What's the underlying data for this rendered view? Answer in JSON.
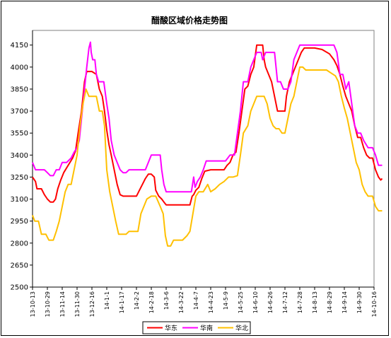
{
  "chart_data": {
    "type": "line",
    "title": "醋酸区域价格走势图",
    "xlabel": "",
    "ylabel": "",
    "ylim": [
      2500,
      4250
    ],
    "yticks": [
      2500,
      2650,
      2800,
      2950,
      3100,
      3250,
      3400,
      3550,
      3700,
      3850,
      4000,
      4150
    ],
    "grid": false,
    "legend_position": "bottom",
    "xtick_labels": [
      "13-10-13",
      "13-10-29",
      "13-11-14",
      "13-11-30",
      "13-12-16",
      "14-1-1",
      "14-1-17",
      "14-2-2",
      "14-2-18",
      "14-3-6",
      "14-3-22",
      "14-4-7",
      "14-4-23",
      "14-5-9",
      "14-5-25",
      "14-6-10",
      "14-6-26",
      "14-7-12",
      "14-7-28",
      "14-8-13",
      "14-8-29",
      "14-9-14",
      "14-9-30",
      "14-10-16"
    ],
    "series": [
      {
        "name": "华东",
        "color": "#ff0000",
        "points": [
          [
            0,
            3250
          ],
          [
            0.2,
            3220
          ],
          [
            0.3,
            3170
          ],
          [
            0.6,
            3170
          ],
          [
            0.8,
            3130
          ],
          [
            1.0,
            3100
          ],
          [
            1.2,
            3080
          ],
          [
            1.4,
            3080
          ],
          [
            1.55,
            3100
          ],
          [
            1.7,
            3170
          ],
          [
            1.9,
            3230
          ],
          [
            2.1,
            3280
          ],
          [
            2.4,
            3330
          ],
          [
            2.7,
            3380
          ],
          [
            2.9,
            3430
          ],
          [
            3.1,
            3570
          ],
          [
            3.3,
            3700
          ],
          [
            3.5,
            3900
          ],
          [
            3.65,
            3970
          ],
          [
            4.0,
            3970
          ],
          [
            4.3,
            3950
          ],
          [
            4.5,
            3850
          ],
          [
            4.7,
            3800
          ],
          [
            4.85,
            3700
          ],
          [
            5.0,
            3570
          ],
          [
            5.15,
            3470
          ],
          [
            5.3,
            3400
          ],
          [
            5.5,
            3300
          ],
          [
            5.7,
            3200
          ],
          [
            5.9,
            3130
          ],
          [
            6.1,
            3120
          ],
          [
            6.4,
            3120
          ],
          [
            7.0,
            3120
          ],
          [
            7.2,
            3160
          ],
          [
            7.4,
            3200
          ],
          [
            7.6,
            3240
          ],
          [
            7.8,
            3270
          ],
          [
            8.0,
            3270
          ],
          [
            8.2,
            3250
          ],
          [
            8.3,
            3160
          ],
          [
            8.5,
            3120
          ],
          [
            8.7,
            3100
          ],
          [
            8.85,
            3080
          ],
          [
            9.0,
            3060
          ],
          [
            9.3,
            3060
          ],
          [
            9.8,
            3060
          ],
          [
            10.3,
            3060
          ],
          [
            10.6,
            3060
          ],
          [
            10.75,
            3120
          ],
          [
            10.85,
            3130
          ],
          [
            11.0,
            3160
          ],
          [
            11.2,
            3180
          ],
          [
            11.4,
            3240
          ],
          [
            11.6,
            3290
          ],
          [
            12.0,
            3300
          ],
          [
            12.5,
            3300
          ],
          [
            12.9,
            3300
          ],
          [
            13.1,
            3330
          ],
          [
            13.3,
            3350
          ],
          [
            13.5,
            3400
          ],
          [
            13.7,
            3420
          ],
          [
            13.9,
            3550
          ],
          [
            14.1,
            3700
          ],
          [
            14.3,
            3850
          ],
          [
            14.5,
            3870
          ],
          [
            14.7,
            3950
          ],
          [
            14.9,
            4000
          ],
          [
            15.1,
            4150
          ],
          [
            15.3,
            4150
          ],
          [
            15.5,
            4150
          ],
          [
            15.6,
            4050
          ],
          [
            15.7,
            4000
          ],
          [
            15.9,
            3950
          ],
          [
            16.1,
            3900
          ],
          [
            16.3,
            3800
          ],
          [
            16.5,
            3700
          ],
          [
            16.8,
            3700
          ],
          [
            17.0,
            3700
          ],
          [
            17.1,
            3800
          ],
          [
            17.3,
            3900
          ],
          [
            17.5,
            3950
          ],
          [
            17.7,
            4000
          ],
          [
            17.9,
            4050
          ],
          [
            18.1,
            4100
          ],
          [
            18.3,
            4130
          ],
          [
            18.5,
            4130
          ],
          [
            19.0,
            4130
          ],
          [
            19.5,
            4120
          ],
          [
            20.0,
            4090
          ],
          [
            20.3,
            4050
          ],
          [
            20.5,
            4010
          ],
          [
            20.7,
            3950
          ],
          [
            20.9,
            3870
          ],
          [
            21.1,
            3800
          ],
          [
            21.3,
            3750
          ],
          [
            21.5,
            3700
          ],
          [
            21.7,
            3600
          ],
          [
            21.9,
            3520
          ],
          [
            22.1,
            3520
          ],
          [
            22.3,
            3450
          ],
          [
            22.5,
            3400
          ],
          [
            22.7,
            3380
          ],
          [
            22.9,
            3380
          ],
          [
            23.1,
            3300
          ],
          [
            23.3,
            3250
          ],
          [
            23.45,
            3230
          ],
          [
            23.55,
            3240
          ]
        ]
      },
      {
        "name": "华南",
        "color": "#ff00ff",
        "points": [
          [
            0,
            3350
          ],
          [
            0.2,
            3300
          ],
          [
            0.5,
            3300
          ],
          [
            0.8,
            3300
          ],
          [
            1.0,
            3280
          ],
          [
            1.2,
            3260
          ],
          [
            1.4,
            3260
          ],
          [
            1.6,
            3300
          ],
          [
            1.8,
            3300
          ],
          [
            2.0,
            3350
          ],
          [
            2.3,
            3350
          ],
          [
            2.6,
            3380
          ],
          [
            2.8,
            3420
          ],
          [
            3.0,
            3450
          ],
          [
            3.15,
            3500
          ],
          [
            3.3,
            3650
          ],
          [
            3.5,
            3850
          ],
          [
            3.65,
            4000
          ],
          [
            3.8,
            4130
          ],
          [
            3.9,
            4170
          ],
          [
            3.95,
            4100
          ],
          [
            4.05,
            4050
          ],
          [
            4.2,
            4050
          ],
          [
            4.3,
            3950
          ],
          [
            4.45,
            3900
          ],
          [
            4.6,
            3900
          ],
          [
            4.8,
            3900
          ],
          [
            5.0,
            3750
          ],
          [
            5.15,
            3650
          ],
          [
            5.3,
            3500
          ],
          [
            5.5,
            3400
          ],
          [
            5.7,
            3350
          ],
          [
            5.9,
            3300
          ],
          [
            6.1,
            3280
          ],
          [
            6.3,
            3280
          ],
          [
            6.5,
            3300
          ],
          [
            6.7,
            3300
          ],
          [
            7.0,
            3300
          ],
          [
            7.3,
            3300
          ],
          [
            7.6,
            3300
          ],
          [
            7.8,
            3350
          ],
          [
            8.0,
            3400
          ],
          [
            8.3,
            3400
          ],
          [
            8.6,
            3400
          ],
          [
            8.7,
            3300
          ],
          [
            8.85,
            3200
          ],
          [
            9.0,
            3150
          ],
          [
            9.3,
            3150
          ],
          [
            9.8,
            3150
          ],
          [
            10.3,
            3150
          ],
          [
            10.7,
            3150
          ],
          [
            10.85,
            3250
          ],
          [
            10.95,
            3180
          ],
          [
            11.1,
            3220
          ],
          [
            11.3,
            3250
          ],
          [
            11.5,
            3300
          ],
          [
            11.7,
            3360
          ],
          [
            12.0,
            3360
          ],
          [
            12.5,
            3360
          ],
          [
            13.0,
            3360
          ],
          [
            13.3,
            3400
          ],
          [
            13.6,
            3400
          ],
          [
            13.8,
            3550
          ],
          [
            14.0,
            3700
          ],
          [
            14.2,
            3900
          ],
          [
            14.5,
            3900
          ],
          [
            14.7,
            4000
          ],
          [
            14.9,
            4050
          ],
          [
            15.1,
            4100
          ],
          [
            15.4,
            4100
          ],
          [
            15.5,
            4050
          ],
          [
            15.7,
            4100
          ],
          [
            16.0,
            4100
          ],
          [
            16.3,
            4100
          ],
          [
            16.5,
            3900
          ],
          [
            16.7,
            3900
          ],
          [
            16.9,
            3850
          ],
          [
            17.2,
            3850
          ],
          [
            17.4,
            3900
          ],
          [
            17.6,
            4050
          ],
          [
            17.8,
            4100
          ],
          [
            18.0,
            4150
          ],
          [
            18.5,
            4150
          ],
          [
            19.0,
            4150
          ],
          [
            19.5,
            4150
          ],
          [
            20.0,
            4150
          ],
          [
            20.3,
            4150
          ],
          [
            20.5,
            4100
          ],
          [
            20.7,
            3950
          ],
          [
            20.9,
            3950
          ],
          [
            21.1,
            3850
          ],
          [
            21.3,
            3900
          ],
          [
            21.5,
            3750
          ],
          [
            21.7,
            3600
          ],
          [
            21.9,
            3550
          ],
          [
            22.1,
            3550
          ],
          [
            22.3,
            3500
          ],
          [
            22.6,
            3450
          ],
          [
            22.9,
            3450
          ],
          [
            23.1,
            3400
          ],
          [
            23.3,
            3330
          ],
          [
            23.55,
            3330
          ]
        ]
      },
      {
        "name": "华北",
        "color": "#ffc000",
        "points": [
          [
            0,
            2990
          ],
          [
            0.15,
            2950
          ],
          [
            0.4,
            2950
          ],
          [
            0.6,
            2860
          ],
          [
            0.9,
            2860
          ],
          [
            1.1,
            2820
          ],
          [
            1.4,
            2820
          ],
          [
            1.6,
            2880
          ],
          [
            1.8,
            2950
          ],
          [
            2.0,
            3050
          ],
          [
            2.2,
            3150
          ],
          [
            2.4,
            3200
          ],
          [
            2.6,
            3200
          ],
          [
            2.8,
            3300
          ],
          [
            3.0,
            3400
          ],
          [
            3.2,
            3600
          ],
          [
            3.4,
            3750
          ],
          [
            3.6,
            3850
          ],
          [
            3.8,
            3800
          ],
          [
            4.0,
            3800
          ],
          [
            4.3,
            3800
          ],
          [
            4.5,
            3700
          ],
          [
            4.7,
            3700
          ],
          [
            4.85,
            3600
          ],
          [
            5.0,
            3300
          ],
          [
            5.2,
            3150
          ],
          [
            5.4,
            3050
          ],
          [
            5.6,
            2950
          ],
          [
            5.8,
            2860
          ],
          [
            6.0,
            2860
          ],
          [
            6.3,
            2860
          ],
          [
            6.5,
            2880
          ],
          [
            6.8,
            2880
          ],
          [
            7.1,
            2880
          ],
          [
            7.3,
            3000
          ],
          [
            7.5,
            3050
          ],
          [
            7.7,
            3100
          ],
          [
            8.0,
            3120
          ],
          [
            8.3,
            3120
          ],
          [
            8.6,
            3050
          ],
          [
            8.8,
            3000
          ],
          [
            8.95,
            2850
          ],
          [
            9.1,
            2780
          ],
          [
            9.3,
            2780
          ],
          [
            9.5,
            2820
          ],
          [
            9.8,
            2820
          ],
          [
            10.1,
            2820
          ],
          [
            10.4,
            2850
          ],
          [
            10.6,
            2880
          ],
          [
            10.8,
            3000
          ],
          [
            11.0,
            3120
          ],
          [
            11.2,
            3150
          ],
          [
            11.5,
            3150
          ],
          [
            11.8,
            3200
          ],
          [
            12.0,
            3150
          ],
          [
            12.3,
            3170
          ],
          [
            12.6,
            3200
          ],
          [
            12.9,
            3220
          ],
          [
            13.2,
            3250
          ],
          [
            13.5,
            3250
          ],
          [
            13.8,
            3260
          ],
          [
            14.0,
            3400
          ],
          [
            14.2,
            3550
          ],
          [
            14.5,
            3600
          ],
          [
            14.7,
            3700
          ],
          [
            14.9,
            3750
          ],
          [
            15.1,
            3800
          ],
          [
            15.4,
            3800
          ],
          [
            15.6,
            3800
          ],
          [
            15.8,
            3750
          ],
          [
            16.0,
            3650
          ],
          [
            16.2,
            3600
          ],
          [
            16.4,
            3580
          ],
          [
            16.6,
            3580
          ],
          [
            16.8,
            3550
          ],
          [
            17.0,
            3550
          ],
          [
            17.2,
            3650
          ],
          [
            17.4,
            3750
          ],
          [
            17.6,
            3800
          ],
          [
            17.8,
            3900
          ],
          [
            18.0,
            4000
          ],
          [
            18.2,
            4000
          ],
          [
            18.4,
            3980
          ],
          [
            18.7,
            3980
          ],
          [
            19.0,
            3980
          ],
          [
            19.5,
            3980
          ],
          [
            19.8,
            3980
          ],
          [
            20.1,
            3960
          ],
          [
            20.4,
            3940
          ],
          [
            20.6,
            3900
          ],
          [
            20.8,
            3800
          ],
          [
            21.0,
            3720
          ],
          [
            21.2,
            3650
          ],
          [
            21.4,
            3550
          ],
          [
            21.6,
            3450
          ],
          [
            21.8,
            3350
          ],
          [
            22.0,
            3300
          ],
          [
            22.2,
            3200
          ],
          [
            22.4,
            3150
          ],
          [
            22.6,
            3120
          ],
          [
            22.9,
            3120
          ],
          [
            23.1,
            3050
          ],
          [
            23.3,
            3020
          ],
          [
            23.55,
            3020
          ]
        ]
      }
    ]
  }
}
